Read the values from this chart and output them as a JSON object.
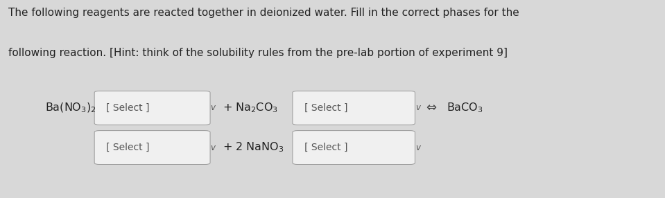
{
  "bg_color": "#d8d8d8",
  "fig_bg_color": "#d8d8d8",
  "title_lines": [
    "The following reagents are reacted together in deionized water. Fill in the correct phases for the",
    "following reaction. [Hint: think of the solubility rules from the pre-lab portion of experiment 9]"
  ],
  "title_fontsize": 11.0,
  "title_color": "#222222",
  "box_color": "#f0f0f0",
  "box_edge_color": "#999999",
  "text_color": "#222222",
  "select_color": "#555555",
  "arrow_color": "#444444",
  "chem_fontsize": 11.5,
  "select_fontsize": 10.0,
  "select_text": "[ Select ]",
  "chevron_text": "v",
  "reaction_arrow": "⇔"
}
